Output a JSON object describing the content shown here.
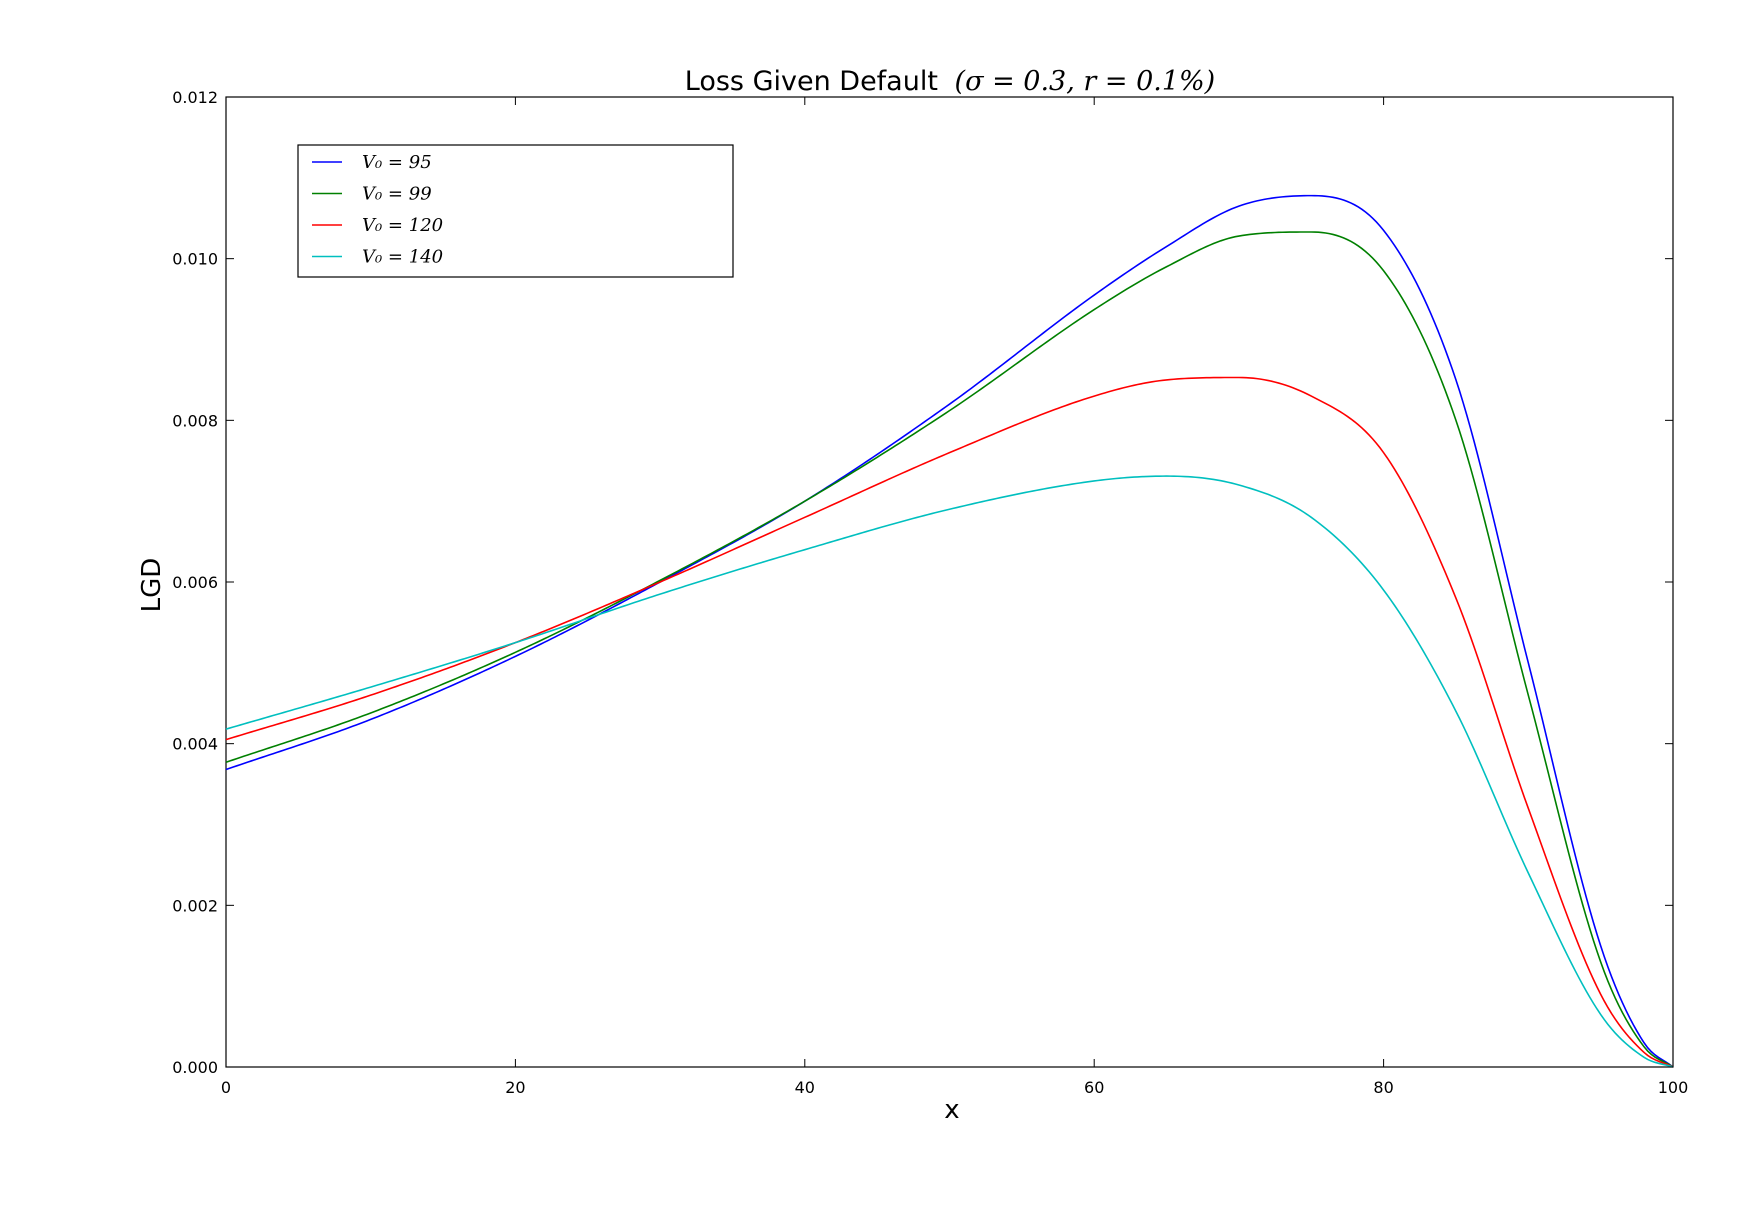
{
  "chart_data": {
    "type": "line",
    "title": "Loss Given Default",
    "title_math": "(σ = 0.3, r = 0.1%)",
    "xlabel": "x",
    "ylabel": "LGD",
    "xlim": [
      0,
      100
    ],
    "ylim": [
      0,
      0.012
    ],
    "xticks": [
      0,
      20,
      40,
      60,
      80,
      100
    ],
    "yticks": [
      0.0,
      0.002,
      0.004,
      0.006,
      0.008,
      0.01,
      0.012
    ],
    "ytick_labels": [
      "0.000",
      "0.002",
      "0.004",
      "0.006",
      "0.008",
      "0.010",
      "0.012"
    ],
    "grid": false,
    "legend_position": "top-left",
    "x": [
      0,
      10,
      20,
      30,
      40,
      50,
      60,
      65,
      70,
      75,
      80,
      85,
      90,
      95,
      98,
      100
    ],
    "series": [
      {
        "name": "V0 = 95",
        "legend_label": "V₀ = 95",
        "color": "#0000ff",
        "values": [
          0.00368,
          0.0043,
          0.00508,
          0.006,
          0.007,
          0.0082,
          0.00955,
          0.01015,
          0.01065,
          0.01078,
          0.01035,
          0.0085,
          0.005,
          0.0015,
          0.0003,
          0.0
        ]
      },
      {
        "name": "V0 = 99",
        "legend_label": "V₀ = 99",
        "color": "#008000",
        "values": [
          0.00377,
          0.00438,
          0.00513,
          0.00602,
          0.007,
          0.00812,
          0.00937,
          0.0099,
          0.01028,
          0.01033,
          0.00985,
          0.008,
          0.0046,
          0.0013,
          0.00025,
          0.0
        ]
      },
      {
        "name": "V0 = 120",
        "legend_label": "V₀ = 120",
        "color": "#ff0000",
        "values": [
          0.00405,
          0.0046,
          0.00525,
          0.006,
          0.0068,
          0.0076,
          0.0083,
          0.0085,
          0.00853,
          0.0083,
          0.0076,
          0.0058,
          0.0032,
          0.0009,
          0.00018,
          0.0
        ]
      },
      {
        "name": "V0 = 140",
        "legend_label": "V₀ = 140",
        "color": "#00bfbf",
        "values": [
          0.00418,
          0.0047,
          0.00525,
          0.00585,
          0.0064,
          0.0069,
          0.00725,
          0.00731,
          0.0072,
          0.0068,
          0.0059,
          0.0044,
          0.0024,
          0.00065,
          0.00012,
          0.0
        ]
      }
    ]
  }
}
